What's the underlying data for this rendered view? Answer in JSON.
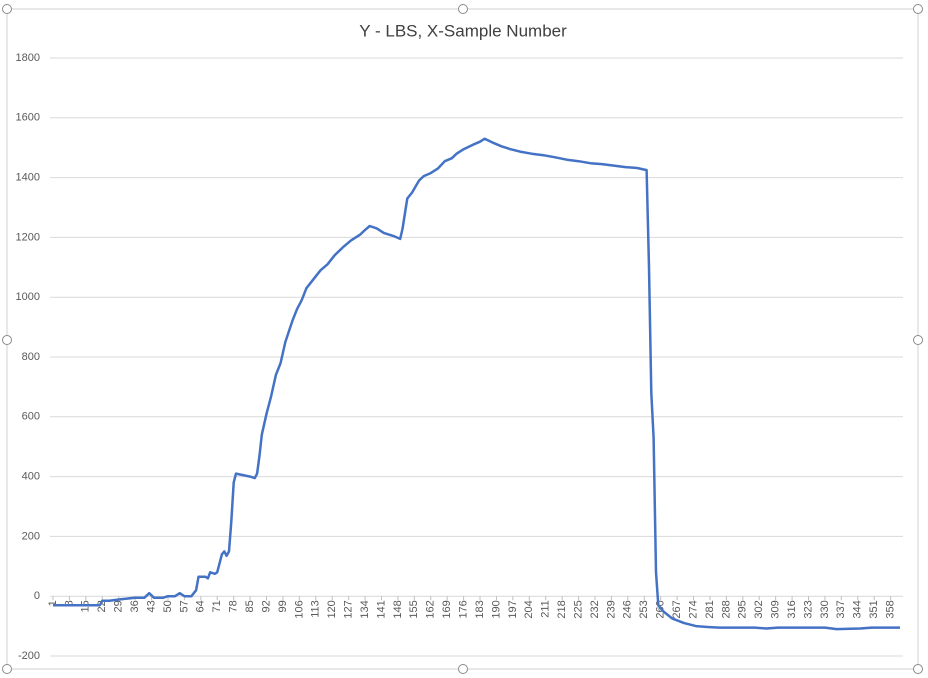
{
  "chart_data": {
    "type": "line",
    "title": "Y - LBS, X-Sample Number",
    "series": [
      {
        "name": "LBS",
        "color": "#4472c4",
        "x": [
          1,
          21,
          22,
          25,
          30,
          36,
          40,
          42,
          44,
          48,
          50,
          53,
          55,
          57,
          60,
          62,
          63,
          66,
          67,
          68,
          70,
          71,
          73,
          74,
          75,
          76,
          77,
          78,
          79,
          82,
          85,
          87,
          88,
          89,
          90,
          92,
          94,
          96,
          98,
          100,
          103,
          105,
          107,
          109,
          112,
          115,
          118,
          121,
          125,
          128,
          132,
          134,
          136,
          139,
          142,
          146,
          149,
          150,
          151,
          152,
          154,
          157,
          159,
          162,
          165,
          168,
          171,
          173,
          176,
          180,
          183,
          185,
          189,
          192,
          196,
          200,
          205,
          210,
          215,
          220,
          225,
          230,
          235,
          240,
          245,
          250,
          254,
          255,
          256,
          257,
          258,
          259,
          261,
          265,
          270,
          275,
          280,
          285,
          290,
          300,
          305,
          310,
          330,
          335,
          345,
          350,
          362
        ],
        "values": [
          -30,
          -30,
          -15,
          -15,
          -10,
          -5,
          -5,
          10,
          -5,
          -5,
          0,
          0,
          10,
          0,
          0,
          20,
          65,
          65,
          60,
          80,
          75,
          80,
          140,
          150,
          135,
          150,
          250,
          380,
          410,
          405,
          400,
          395,
          410,
          470,
          540,
          610,
          670,
          740,
          780,
          850,
          920,
          960,
          990,
          1030,
          1060,
          1090,
          1110,
          1140,
          1170,
          1190,
          1210,
          1225,
          1238,
          1230,
          1215,
          1205,
          1195,
          1230,
          1280,
          1330,
          1350,
          1390,
          1405,
          1415,
          1430,
          1455,
          1465,
          1480,
          1495,
          1510,
          1520,
          1530,
          1515,
          1505,
          1495,
          1487,
          1480,
          1475,
          1468,
          1460,
          1455,
          1448,
          1445,
          1440,
          1435,
          1432,
          1425,
          1100,
          680,
          530,
          80,
          -30,
          -50,
          -75,
          -90,
          -100,
          -103,
          -105,
          -105,
          -105,
          -108,
          -105,
          -105,
          -110,
          -108,
          -105,
          -105
        ]
      }
    ],
    "xlim": [
      1,
      362
    ],
    "xticks": [
      1,
      8,
      15,
      22,
      29,
      36,
      43,
      50,
      57,
      64,
      71,
      78,
      85,
      92,
      99,
      106,
      113,
      120,
      127,
      134,
      141,
      148,
      155,
      162,
      169,
      176,
      183,
      190,
      197,
      204,
      211,
      218,
      225,
      232,
      239,
      246,
      253,
      260,
      267,
      274,
      281,
      288,
      295,
      302,
      309,
      316,
      323,
      330,
      337,
      344,
      351,
      358
    ],
    "ylim": [
      -200,
      1800
    ],
    "yticks": [
      -200,
      0,
      200,
      400,
      600,
      800,
      1000,
      1200,
      1400,
      1600,
      1800
    ],
    "grid": true
  }
}
